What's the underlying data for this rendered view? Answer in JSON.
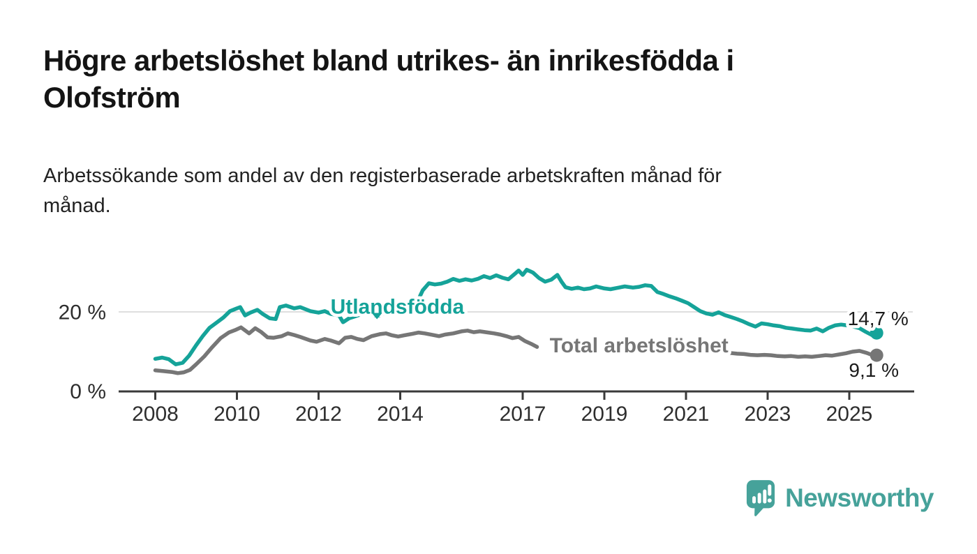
{
  "header": {
    "title_lines": [
      "Högre arbetslöshet bland utrikes- än inrikesfödda i",
      "Olofström"
    ],
    "subtitle_lines": [
      "Arbetssökande som andel av den registerbaserade arbetskraften månad för",
      "månad."
    ]
  },
  "footer": {
    "brand": "Newsworthy",
    "brand_color": "#46a29a"
  },
  "colors": {
    "background": "#ffffff",
    "title": "#141414",
    "subtitle": "#222222",
    "axis": "#3a3a3a",
    "tick_label": "#2e2e2e",
    "grid": "#d4d4d4",
    "value_label": "#1b1b1b",
    "teal": "#15a399",
    "gray": "#767676"
  },
  "chart_data": {
    "type": "line",
    "unit": "%",
    "xlim_years": [
      2007.1,
      2026.6
    ],
    "ylim": [
      0,
      33
    ],
    "grid": "y-only-at-20",
    "y_ticks": [
      {
        "value": 20,
        "label": "20 %",
        "gridline": true
      },
      {
        "value": 0,
        "label": "0 %",
        "gridline": false
      }
    ],
    "x_ticks": [
      {
        "year": 2008,
        "label": "2008"
      },
      {
        "year": 2010,
        "label": "2010"
      },
      {
        "year": 2012,
        "label": "2012"
      },
      {
        "year": 2014,
        "label": "2014"
      },
      {
        "year": 2017,
        "label": "2017"
      },
      {
        "year": 2019,
        "label": "2019"
      },
      {
        "year": 2021,
        "label": "2021"
      },
      {
        "year": 2023,
        "label": "2023"
      },
      {
        "year": 2025,
        "label": "2025"
      }
    ],
    "series": [
      {
        "name": "Utlandsfödda",
        "color": "#15a399",
        "label": {
          "text": "Utlandsfödda",
          "x_year": 2013.93,
          "y_pct": 21.3,
          "marker": "triangle-down",
          "marker_x_year": 2013.43,
          "marker_y_pct": 19.2
        },
        "end_dot": true,
        "end_value": 14.7,
        "value_label": {
          "text": "14,7 %",
          "position": "above"
        },
        "segments": [
          [
            [
              2008.0,
              8.2
            ],
            [
              2008.17,
              8.5
            ],
            [
              2008.33,
              8.1
            ],
            [
              2008.5,
              6.8
            ],
            [
              2008.67,
              7.2
            ],
            [
              2008.83,
              9.0
            ],
            [
              2009.0,
              11.6
            ],
            [
              2009.17,
              14.0
            ],
            [
              2009.33,
              16.0
            ],
            [
              2009.5,
              17.3
            ],
            [
              2009.67,
              18.6
            ],
            [
              2009.83,
              20.2
            ],
            [
              2010.0,
              20.9
            ],
            [
              2010.08,
              21.2
            ],
            [
              2010.2,
              19.1
            ],
            [
              2010.33,
              19.8
            ],
            [
              2010.5,
              20.5
            ],
            [
              2010.63,
              19.5
            ],
            [
              2010.8,
              18.4
            ],
            [
              2010.95,
              18.2
            ],
            [
              2011.05,
              21.2
            ],
            [
              2011.2,
              21.6
            ],
            [
              2011.4,
              20.9
            ],
            [
              2011.55,
              21.2
            ],
            [
              2011.8,
              20.2
            ],
            [
              2012.0,
              19.8
            ],
            [
              2012.15,
              20.2
            ],
            [
              2012.3,
              19.5
            ],
            [
              2012.5,
              19.1
            ],
            [
              2012.6,
              17.4
            ],
            [
              2012.75,
              18.4
            ],
            [
              2012.9,
              18.9
            ],
            [
              2013.05,
              19.4
            ],
            [
              2013.2,
              19.8
            ],
            [
              2013.43,
              19.0
            ],
            [
              2013.6,
              19.5
            ],
            [
              2013.8,
              19.8
            ],
            [
              2014.0,
              19.9
            ],
            [
              2014.2,
              20.1
            ],
            [
              2014.35,
              20.5
            ],
            [
              2014.45,
              23.2
            ],
            [
              2014.55,
              25.4
            ],
            [
              2014.7,
              27.2
            ],
            [
              2014.85,
              26.9
            ],
            [
              2015.0,
              27.1
            ],
            [
              2015.15,
              27.6
            ],
            [
              2015.3,
              28.3
            ],
            [
              2015.45,
              27.8
            ],
            [
              2015.6,
              28.2
            ],
            [
              2015.75,
              27.9
            ],
            [
              2015.9,
              28.3
            ],
            [
              2016.05,
              29.0
            ],
            [
              2016.2,
              28.5
            ],
            [
              2016.35,
              29.2
            ],
            [
              2016.5,
              28.6
            ],
            [
              2016.65,
              28.2
            ],
            [
              2016.8,
              29.5
            ],
            [
              2016.9,
              30.4
            ],
            [
              2017.0,
              29.3
            ],
            [
              2017.1,
              30.6
            ],
            [
              2017.25,
              29.9
            ],
            [
              2017.4,
              28.5
            ],
            [
              2017.55,
              27.6
            ],
            [
              2017.7,
              28.1
            ],
            [
              2017.85,
              29.3
            ],
            [
              2017.95,
              27.6
            ],
            [
              2018.05,
              26.2
            ],
            [
              2018.2,
              25.8
            ],
            [
              2018.35,
              26.1
            ],
            [
              2018.5,
              25.7
            ],
            [
              2018.65,
              25.9
            ],
            [
              2018.8,
              26.4
            ],
            [
              2019.0,
              25.9
            ],
            [
              2019.15,
              25.7
            ],
            [
              2019.3,
              26.0
            ],
            [
              2019.5,
              26.4
            ],
            [
              2019.7,
              26.1
            ],
            [
              2019.85,
              26.3
            ],
            [
              2020.0,
              26.7
            ],
            [
              2020.15,
              26.5
            ],
            [
              2020.3,
              25.0
            ],
            [
              2020.45,
              24.5
            ],
            [
              2020.6,
              23.9
            ],
            [
              2020.75,
              23.4
            ],
            [
              2020.9,
              22.8
            ],
            [
              2021.05,
              22.2
            ],
            [
              2021.2,
              21.2
            ],
            [
              2021.35,
              20.2
            ],
            [
              2021.5,
              19.6
            ],
            [
              2021.65,
              19.3
            ],
            [
              2021.8,
              19.9
            ],
            [
              2021.95,
              19.2
            ],
            [
              2022.1,
              18.7
            ],
            [
              2022.25,
              18.2
            ],
            [
              2022.4,
              17.6
            ],
            [
              2022.55,
              16.9
            ],
            [
              2022.7,
              16.3
            ],
            [
              2022.85,
              17.1
            ],
            [
              2023.0,
              16.9
            ],
            [
              2023.15,
              16.6
            ],
            [
              2023.3,
              16.4
            ],
            [
              2023.45,
              16.0
            ],
            [
              2023.6,
              15.8
            ],
            [
              2023.75,
              15.6
            ],
            [
              2023.9,
              15.4
            ],
            [
              2024.05,
              15.3
            ],
            [
              2024.2,
              15.8
            ],
            [
              2024.35,
              15.1
            ],
            [
              2024.5,
              16.0
            ],
            [
              2024.65,
              16.6
            ],
            [
              2024.8,
              16.8
            ],
            [
              2024.95,
              16.6
            ],
            [
              2025.1,
              16.3
            ],
            [
              2025.25,
              15.9
            ],
            [
              2025.4,
              15.0
            ],
            [
              2025.55,
              14.2
            ],
            [
              2025.67,
              14.7
            ]
          ]
        ]
      },
      {
        "name": "Total arbetslöshet",
        "color": "#767676",
        "label": {
          "text": "Total arbetslöshet",
          "x_year": 2019.85,
          "y_pct": 11.6
        },
        "end_dot": true,
        "end_value": 9.1,
        "value_label": {
          "text": "9,1 %",
          "position": "below"
        },
        "segments": [
          [
            [
              2008.0,
              5.3
            ],
            [
              2008.2,
              5.1
            ],
            [
              2008.4,
              4.9
            ],
            [
              2008.55,
              4.6
            ],
            [
              2008.7,
              4.8
            ],
            [
              2008.85,
              5.4
            ],
            [
              2009.0,
              6.8
            ],
            [
              2009.2,
              8.8
            ],
            [
              2009.4,
              11.2
            ],
            [
              2009.6,
              13.4
            ],
            [
              2009.8,
              14.8
            ],
            [
              2009.95,
              15.4
            ],
            [
              2010.1,
              16.1
            ],
            [
              2010.3,
              14.6
            ],
            [
              2010.45,
              15.9
            ],
            [
              2010.6,
              14.9
            ],
            [
              2010.75,
              13.6
            ],
            [
              2010.9,
              13.5
            ],
            [
              2011.1,
              13.9
            ],
            [
              2011.25,
              14.6
            ],
            [
              2011.4,
              14.2
            ],
            [
              2011.55,
              13.7
            ],
            [
              2011.8,
              12.8
            ],
            [
              2011.95,
              12.5
            ],
            [
              2012.15,
              13.2
            ],
            [
              2012.3,
              12.8
            ],
            [
              2012.5,
              12.1
            ],
            [
              2012.65,
              13.5
            ],
            [
              2012.8,
              13.7
            ],
            [
              2012.95,
              13.2
            ],
            [
              2013.1,
              12.9
            ],
            [
              2013.3,
              13.9
            ],
            [
              2013.5,
              14.4
            ],
            [
              2013.65,
              14.6
            ],
            [
              2013.8,
              14.1
            ],
            [
              2013.95,
              13.8
            ],
            [
              2014.1,
              14.1
            ],
            [
              2014.3,
              14.5
            ],
            [
              2014.45,
              14.8
            ],
            [
              2014.6,
              14.6
            ],
            [
              2014.8,
              14.2
            ],
            [
              2014.95,
              13.9
            ],
            [
              2015.1,
              14.3
            ],
            [
              2015.3,
              14.6
            ],
            [
              2015.5,
              15.1
            ],
            [
              2015.65,
              15.3
            ],
            [
              2015.8,
              14.9
            ],
            [
              2015.95,
              15.1
            ],
            [
              2016.1,
              14.9
            ],
            [
              2016.3,
              14.6
            ],
            [
              2016.45,
              14.3
            ],
            [
              2016.6,
              13.9
            ],
            [
              2016.75,
              13.4
            ],
            [
              2016.9,
              13.7
            ],
            [
              2017.05,
              12.7
            ],
            [
              2017.2,
              12.0
            ],
            [
              2017.35,
              11.2
            ]
          ],
          [
            [
              2022.05,
              9.7
            ],
            [
              2022.25,
              9.5
            ],
            [
              2022.42,
              9.4
            ],
            [
              2022.58,
              9.2
            ],
            [
              2022.75,
              9.1
            ],
            [
              2022.92,
              9.2
            ],
            [
              2023.08,
              9.1
            ],
            [
              2023.25,
              8.9
            ],
            [
              2023.42,
              8.8
            ],
            [
              2023.58,
              8.9
            ],
            [
              2023.75,
              8.7
            ],
            [
              2023.92,
              8.8
            ],
            [
              2024.08,
              8.7
            ],
            [
              2024.25,
              8.9
            ],
            [
              2024.42,
              9.1
            ],
            [
              2024.58,
              9.0
            ],
            [
              2024.75,
              9.3
            ],
            [
              2024.92,
              9.6
            ],
            [
              2025.08,
              10.0
            ],
            [
              2025.25,
              10.2
            ],
            [
              2025.42,
              9.7
            ],
            [
              2025.55,
              9.2
            ],
            [
              2025.67,
              9.1
            ]
          ]
        ]
      }
    ]
  }
}
